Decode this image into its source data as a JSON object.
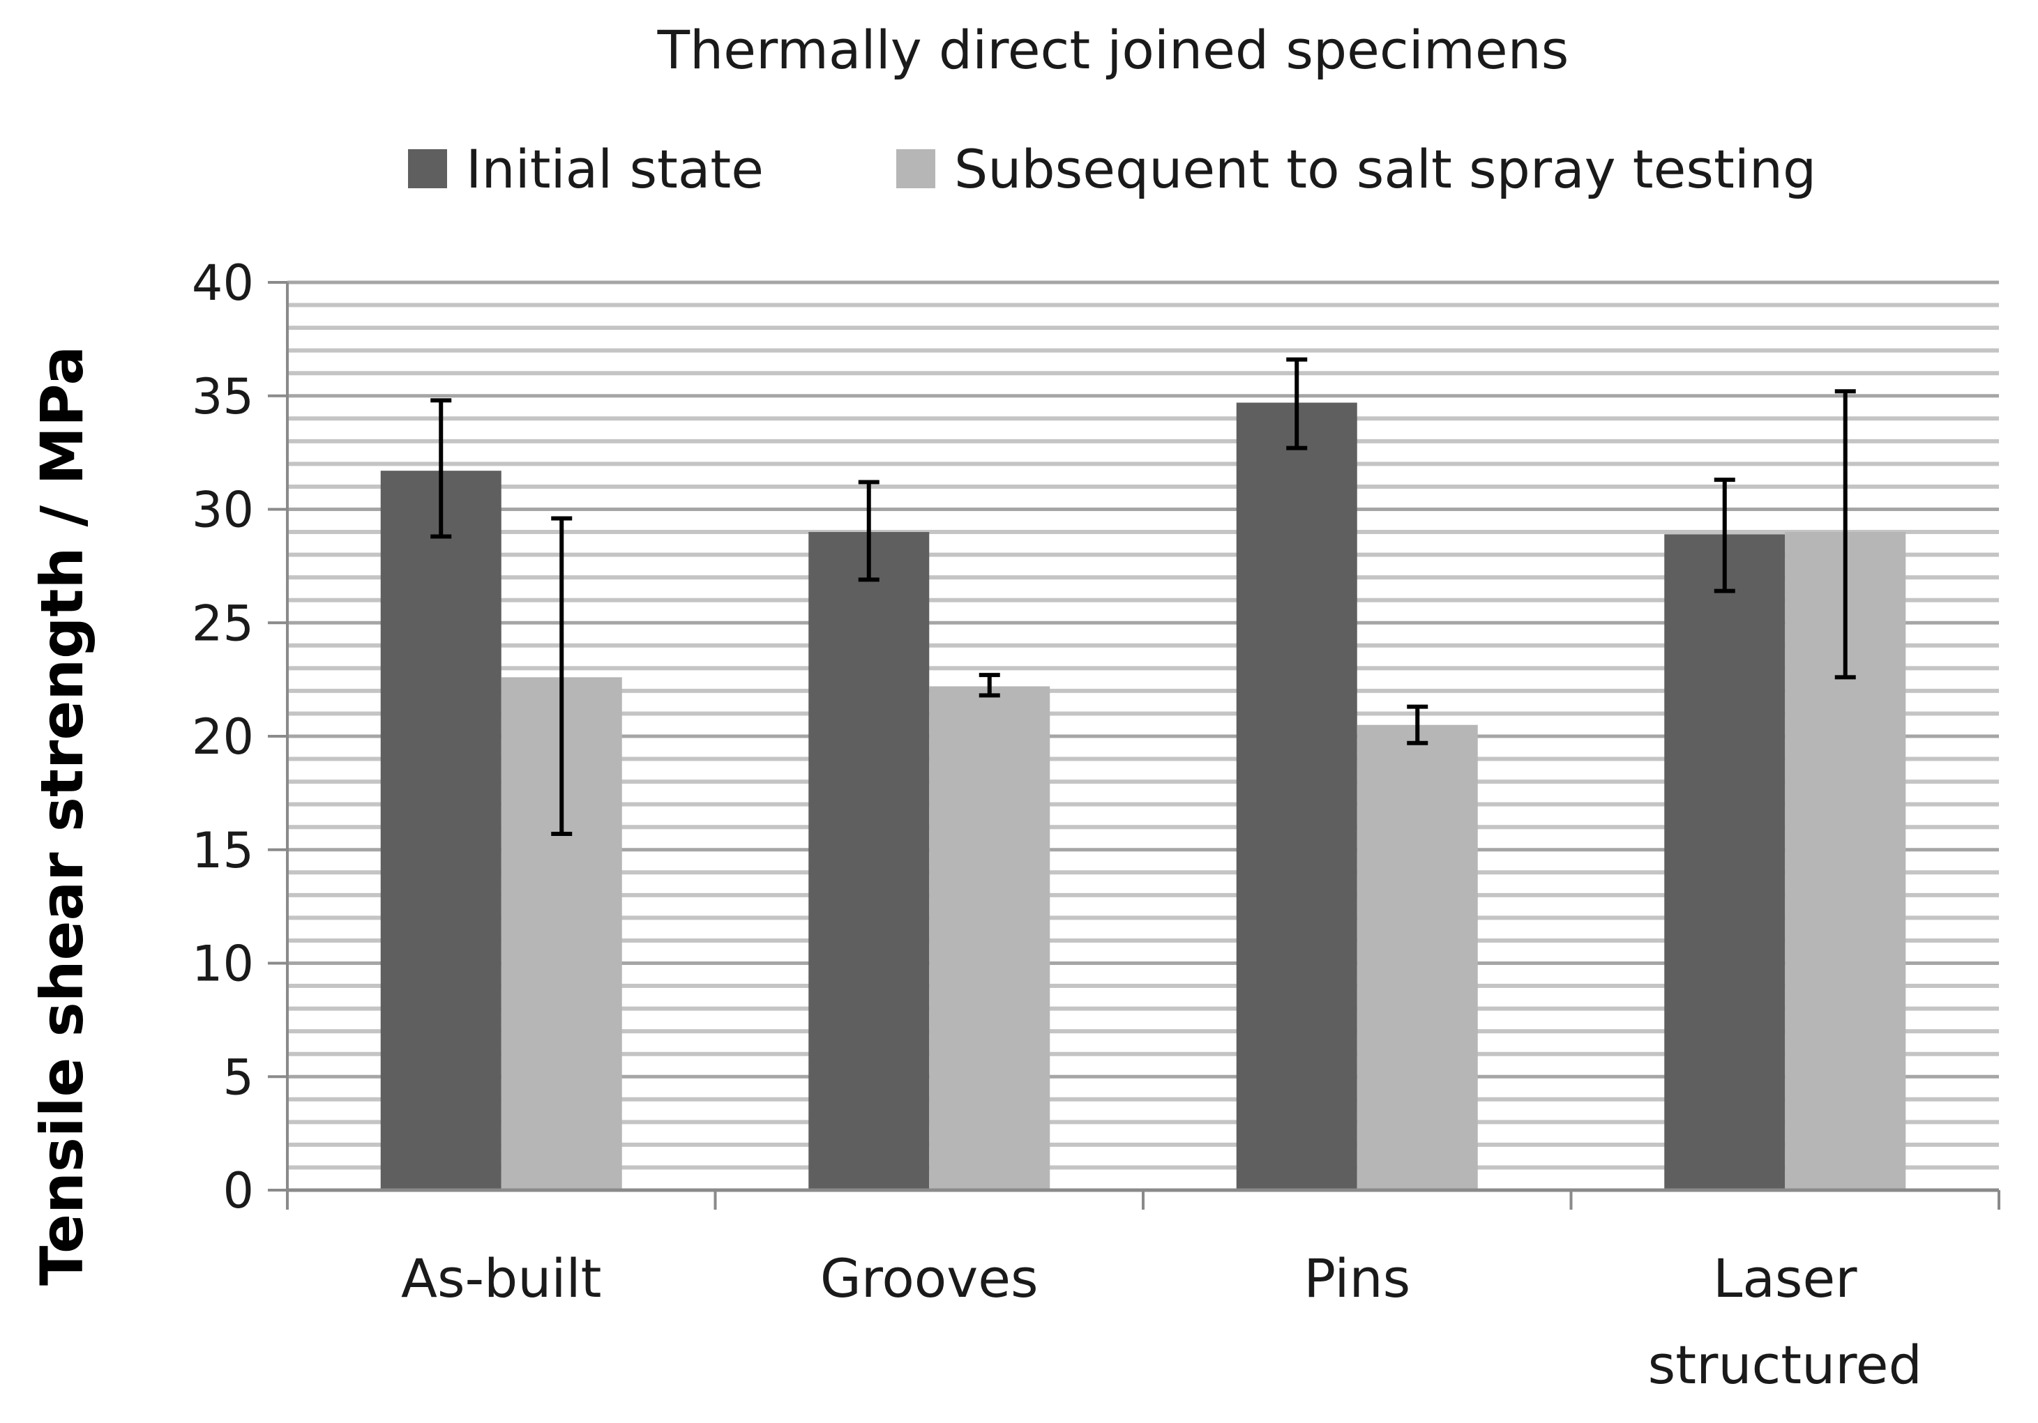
{
  "chart_data": {
    "type": "bar",
    "title": "Thermally direct joined specimens",
    "xlabel": "",
    "ylabel": "Tensile shear strength / MPa",
    "ylim": [
      0,
      40
    ],
    "yticks": [
      0,
      5,
      10,
      15,
      20,
      25,
      30,
      35,
      40
    ],
    "minor_grid_step": 1,
    "grid": true,
    "legend_position": "top",
    "categories": [
      [
        "As-built"
      ],
      [
        "Grooves"
      ],
      [
        "Pins"
      ],
      [
        "Laser",
        "structured"
      ]
    ],
    "series": [
      {
        "name": "Initial state",
        "color": "#5f5f5f",
        "values": [
          31.7,
          29.0,
          34.7,
          28.9
        ],
        "err_low": [
          28.8,
          26.9,
          32.7,
          26.4
        ],
        "err_high": [
          34.8,
          31.2,
          36.6,
          31.3
        ]
      },
      {
        "name": "Subsequent to salt spray testing",
        "color": "#b6b6b6",
        "values": [
          22.6,
          22.2,
          20.5,
          29.0
        ],
        "err_low": [
          15.7,
          21.8,
          19.7,
          22.6
        ],
        "err_high": [
          29.6,
          22.7,
          21.3,
          35.2
        ]
      }
    ]
  }
}
